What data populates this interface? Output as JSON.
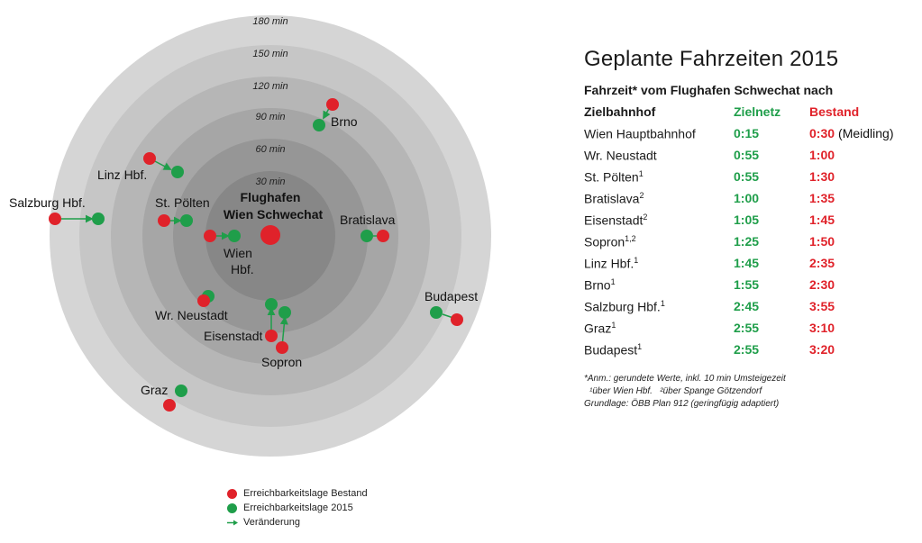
{
  "diagram": {
    "rings": [
      {
        "label": "180 min"
      },
      {
        "label": "150 min"
      },
      {
        "label": "120 min"
      },
      {
        "label": "90 min"
      },
      {
        "label": "60 min"
      },
      {
        "label": "30 min"
      }
    ],
    "center": {
      "line1": "Flughafen",
      "line2": "Wien Schwechat"
    },
    "cities": [
      {
        "name": "Brno"
      },
      {
        "name": "Linz Hbf."
      },
      {
        "name": "Salzburg Hbf."
      },
      {
        "name": "St. Pölten"
      },
      {
        "name": "Bratislava"
      },
      {
        "name": "Wien"
      },
      {
        "name": "Hbf."
      },
      {
        "name": "Budapest"
      },
      {
        "name": "Wr. Neustadt"
      },
      {
        "name": "Eisenstadt"
      },
      {
        "name": "Sopron"
      },
      {
        "name": "Graz"
      }
    ],
    "colors": {
      "bestand": "#e0222a",
      "zielnetz": "#1f9e4a"
    }
  },
  "legend": {
    "bestand": "Erreichbarkeitslage Bestand",
    "zielnetz": "Erreichbarkeitslage 2015",
    "change": "Veränderung"
  },
  "panel": {
    "title": "Geplante Fahrzeiten 2015",
    "subtitle": "Fahrzeit* vom Flughafen Schwechat nach",
    "headers": {
      "dest": "Zielbahnhof",
      "zielnetz": "Zielnetz",
      "bestand": "Bestand"
    },
    "rows": [
      {
        "dest": "Wien Hauptbahnhof",
        "sup": "",
        "zielnetz": "0:15",
        "bestand": "0:30",
        "note": "(Meidling)"
      },
      {
        "dest": "Wr. Neustadt",
        "sup": "",
        "zielnetz": "0:55",
        "bestand": "1:00",
        "note": ""
      },
      {
        "dest": "St. Pölten",
        "sup": "1",
        "zielnetz": "0:55",
        "bestand": "1:30",
        "note": ""
      },
      {
        "dest": "Bratislava",
        "sup": "2",
        "zielnetz": "1:00",
        "bestand": "1:35",
        "note": ""
      },
      {
        "dest": "Eisenstadt",
        "sup": "2",
        "zielnetz": "1:05",
        "bestand": "1:45",
        "note": ""
      },
      {
        "dest": "Sopron",
        "sup": "1,2",
        "zielnetz": "1:25",
        "bestand": "1:50",
        "note": ""
      },
      {
        "dest": "Linz Hbf.",
        "sup": "1",
        "zielnetz": "1:45",
        "bestand": "2:35",
        "note": ""
      },
      {
        "dest": "Brno",
        "sup": "1",
        "zielnetz": "1:55",
        "bestand": "2:30",
        "note": ""
      },
      {
        "dest": "Salzburg Hbf.",
        "sup": "1",
        "zielnetz": "2:45",
        "bestand": "3:55",
        "note": ""
      },
      {
        "dest": "Graz",
        "sup": "1",
        "zielnetz": "2:55",
        "bestand": "3:10",
        "note": ""
      },
      {
        "dest": "Budapest",
        "sup": "1",
        "zielnetz": "2:55",
        "bestand": "3:20",
        "note": ""
      }
    ],
    "notes": [
      "*Anm.: gerundete Werte, inkl. 10 min Umsteigezeit",
      "¹über Wien Hbf.   ²über Spange Götzendorf",
      "Grundlage: ÖBB Plan 912 (geringfügig adaptiert)"
    ]
  }
}
